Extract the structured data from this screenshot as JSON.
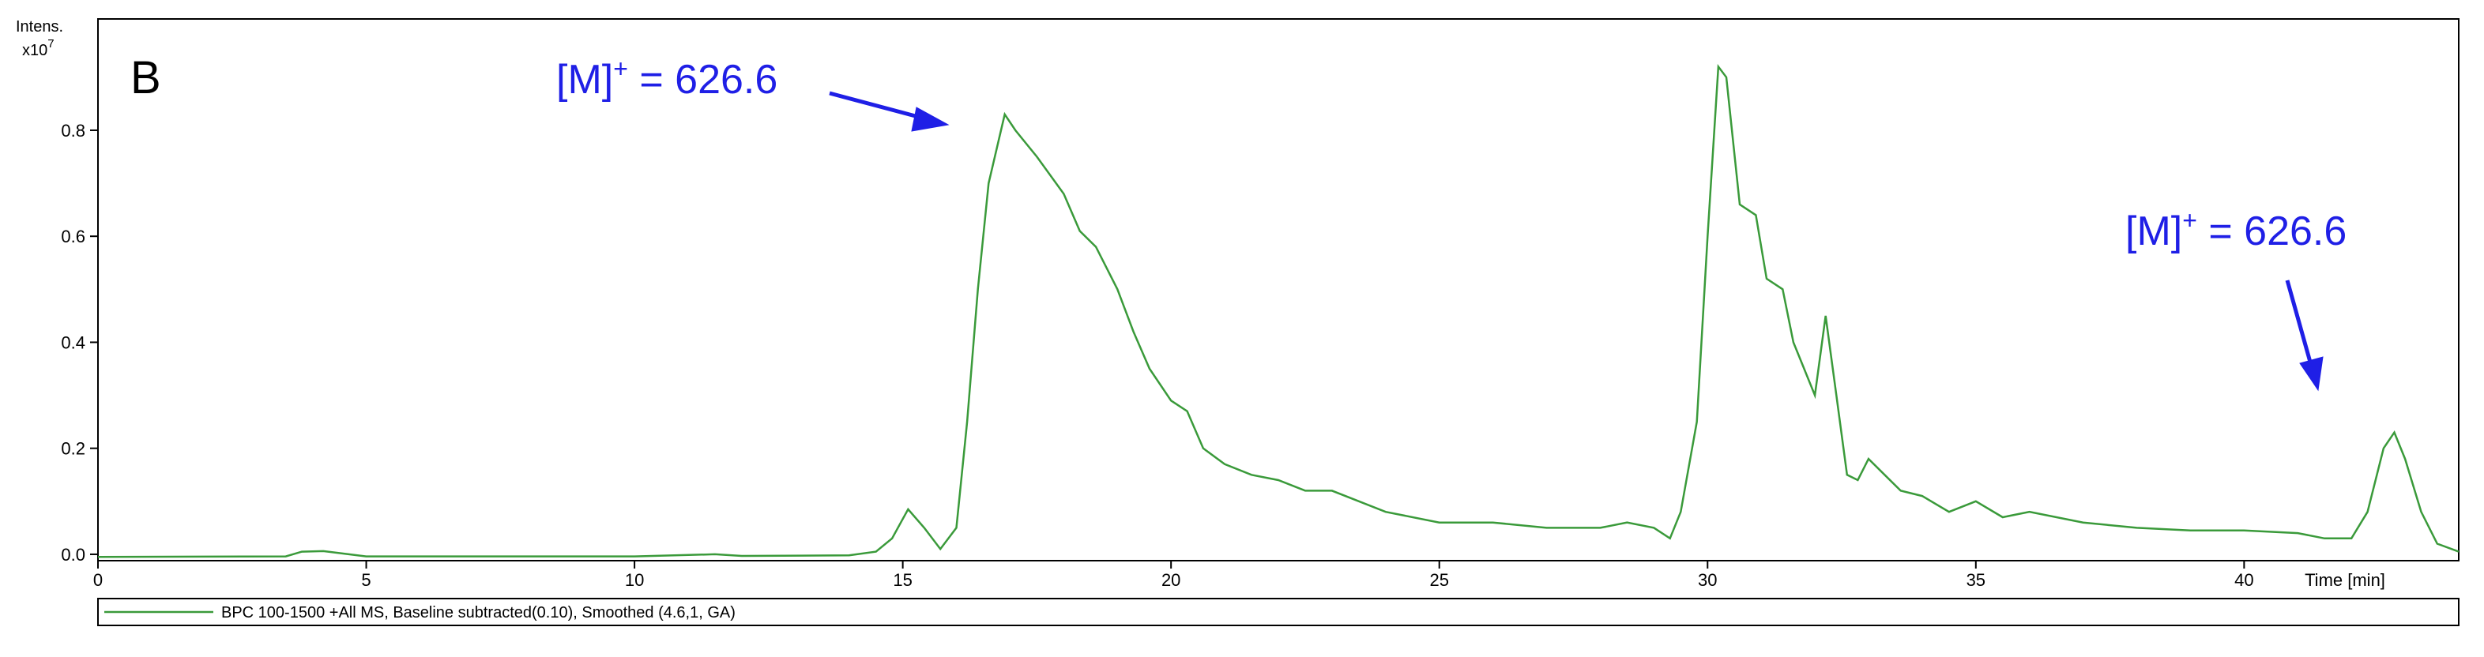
{
  "chart_data": {
    "type": "line",
    "panel_label": "B",
    "y_label": "Intens.",
    "y_scale": "x10",
    "y_scale_exp": "7",
    "x_label": "Time [min]",
    "annotations": [
      {
        "base": "[M]",
        "sup": "+",
        "rest": " = 626.6"
      },
      {
        "base": "[M]",
        "sup": "+",
        "rest": " = 626.6"
      }
    ],
    "x": [
      0,
      3.5,
      3.8,
      4.2,
      4.6,
      5,
      10,
      11.5,
      12,
      14,
      14.5,
      14.8,
      15.1,
      15.4,
      15.7,
      16.0,
      16.2,
      16.4,
      16.6,
      16.9,
      17.1,
      17.5,
      18,
      18.3,
      18.6,
      19,
      19.3,
      19.6,
      20,
      20.3,
      20.6,
      21,
      21.5,
      22,
      22.5,
      23,
      23.5,
      24,
      25,
      26,
      27,
      28,
      28.5,
      29,
      29.3,
      29.5,
      29.8,
      30.0,
      30.2,
      30.35,
      30.6,
      30.9,
      31.1,
      31.4,
      31.6,
      31.8,
      32.0,
      32.2,
      32.4,
      32.6,
      32.8,
      33.0,
      33.3,
      33.6,
      34,
      34.5,
      35,
      35.5,
      36,
      37,
      38,
      39,
      40,
      41,
      41.5,
      42,
      42.3,
      42.6,
      42.8,
      43.0,
      43.3,
      43.6,
      44
    ],
    "series": [
      {
        "name": "BPC 100-1500 +All MS, Baseline subtracted(0.10), Smoothed (4.6,1, GA)",
        "color": "#3a9a3a",
        "values": [
          -0.005,
          -0.004,
          0.005,
          0.006,
          0.001,
          -0.004,
          -0.004,
          0.0,
          -0.003,
          -0.002,
          0.005,
          0.03,
          0.085,
          0.05,
          0.01,
          0.05,
          0.25,
          0.5,
          0.7,
          0.83,
          0.8,
          0.75,
          0.68,
          0.61,
          0.58,
          0.5,
          0.42,
          0.35,
          0.29,
          0.27,
          0.2,
          0.17,
          0.15,
          0.14,
          0.12,
          0.12,
          0.1,
          0.08,
          0.06,
          0.06,
          0.05,
          0.05,
          0.06,
          0.05,
          0.03,
          0.08,
          0.25,
          0.6,
          0.92,
          0.9,
          0.66,
          0.64,
          0.52,
          0.5,
          0.4,
          0.35,
          0.3,
          0.45,
          0.3,
          0.15,
          0.14,
          0.18,
          0.15,
          0.12,
          0.11,
          0.08,
          0.1,
          0.07,
          0.08,
          0.06,
          0.05,
          0.045,
          0.045,
          0.04,
          0.03,
          0.03,
          0.08,
          0.2,
          0.23,
          0.18,
          0.08,
          0.02,
          0.005
        ]
      }
    ],
    "xlim": [
      0,
      44
    ],
    "ylim": [
      -0.012,
      1.01
    ],
    "xticks": [
      0,
      5,
      10,
      15,
      20,
      25,
      30,
      35,
      40
    ],
    "yticks": [
      {
        "value": 0,
        "label": "0.0"
      },
      0.2,
      0.4,
      0.6,
      0.8
    ]
  }
}
